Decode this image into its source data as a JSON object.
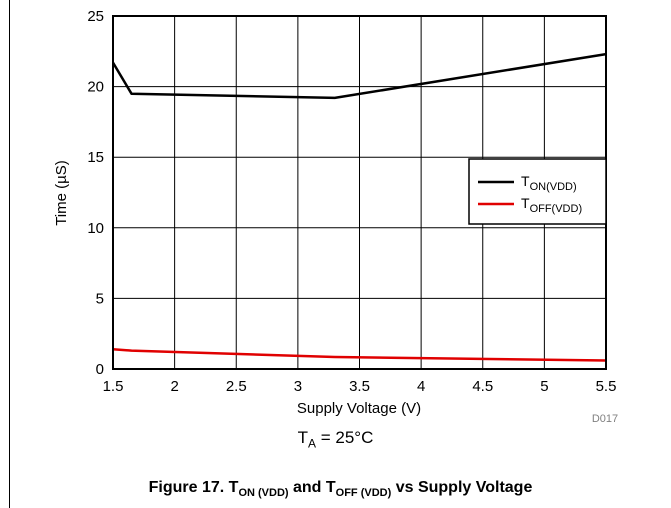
{
  "chart_data": {
    "type": "line",
    "xlabel": "Supply Voltage (V)",
    "ylabel": "Time (µS)",
    "xlim": [
      1.5,
      5.5
    ],
    "ylim": [
      0,
      25
    ],
    "x_ticks": [
      "1.5",
      "2",
      "2.5",
      "3",
      "3.5",
      "4",
      "4.5",
      "5",
      "5.5"
    ],
    "y_ticks": [
      "0",
      "5",
      "10",
      "15",
      "20",
      "25"
    ],
    "grid": true,
    "legend_position": "right",
    "series": [
      {
        "name_main": "T",
        "name_sub": "ON(VDD)",
        "color": "#000000",
        "x": [
          1.5,
          1.65,
          3.3,
          5.5
        ],
        "y": [
          21.7,
          19.5,
          19.2,
          22.3
        ]
      },
      {
        "name_main": "T",
        "name_sub": "OFF(VDD)",
        "color": "#e00000",
        "x": [
          1.5,
          1.65,
          3.3,
          5.5
        ],
        "y": [
          1.4,
          1.3,
          0.85,
          0.6
        ]
      }
    ],
    "code": "D017"
  },
  "condition": {
    "main": "T",
    "sub": "A",
    "rest": " = 25°C"
  },
  "caption": {
    "prefix": "Figure 17. T",
    "sub1": "ON (VDD)",
    "mid": " and T",
    "sub2": "OFF (VDD)",
    "suffix": " vs Supply Voltage"
  }
}
